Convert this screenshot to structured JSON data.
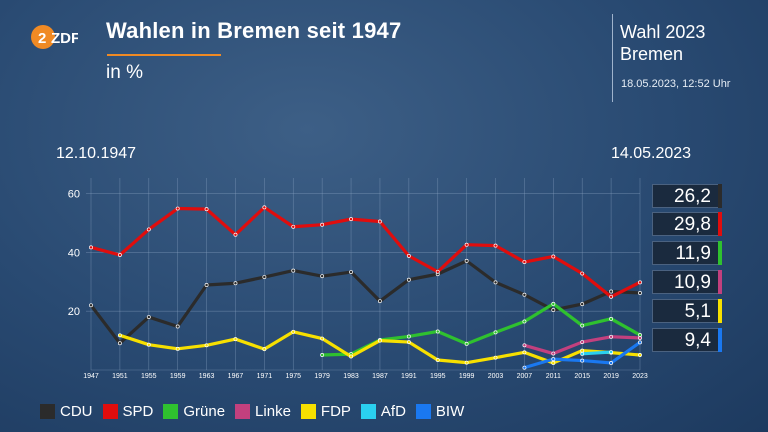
{
  "header": {
    "logo_text": "ZDF",
    "title": "Wahlen in Bremen seit 1947",
    "subtitle": "in %",
    "side_title_line1": "Wahl 2023",
    "side_title_line2": "Bremen",
    "side_date": "18.05.2023, 12:52 Uhr",
    "date_start": "12.10.1947",
    "date_end": "14.05.2023"
  },
  "colors": {
    "CDU": "#2b2b2b",
    "SPD": "#e00d0d",
    "Grüne": "#2fc12f",
    "Linke": "#c2407e",
    "FDP": "#f7e000",
    "AfD": "#2ad0f0",
    "BIW": "#1a78f0"
  },
  "chart_data": {
    "type": "line",
    "x": [
      "1947",
      "1951",
      "1955",
      "1959",
      "1963",
      "1967",
      "1971",
      "1975",
      "1979",
      "1983",
      "1987",
      "1991",
      "1995",
      "1999",
      "2003",
      "2007",
      "2011",
      "2015",
      "2019",
      "2023"
    ],
    "ylim": [
      0,
      68
    ],
    "yticks": [
      "20",
      "40",
      "60"
    ],
    "grid": true,
    "series": [
      {
        "name": "CDU",
        "values": [
          22.0,
          9.1,
          18.0,
          14.8,
          28.9,
          29.5,
          31.6,
          33.8,
          31.9,
          33.3,
          23.4,
          30.7,
          32.6,
          37.1,
          29.8,
          25.6,
          20.4,
          22.4,
          26.7,
          26.2
        ]
      },
      {
        "name": "SPD",
        "values": [
          41.7,
          39.1,
          47.8,
          54.9,
          54.7,
          46.0,
          55.3,
          48.7,
          49.4,
          51.3,
          50.5,
          38.8,
          33.4,
          42.6,
          42.3,
          36.7,
          38.6,
          32.8,
          24.9,
          29.8
        ]
      },
      {
        "name": "Grüne",
        "values": [
          null,
          null,
          null,
          null,
          null,
          null,
          null,
          null,
          5.1,
          5.4,
          10.2,
          11.4,
          13.1,
          8.9,
          12.8,
          16.5,
          22.5,
          15.1,
          17.4,
          11.9
        ]
      },
      {
        "name": "Linke",
        "values": [
          null,
          null,
          null,
          null,
          null,
          null,
          null,
          null,
          null,
          null,
          null,
          null,
          null,
          null,
          null,
          8.4,
          5.6,
          9.5,
          11.3,
          10.9
        ]
      },
      {
        "name": "FDP",
        "values": [
          null,
          11.8,
          8.6,
          7.2,
          8.4,
          10.5,
          7.1,
          13.0,
          10.7,
          4.6,
          10.0,
          9.5,
          3.4,
          2.5,
          4.2,
          6.0,
          2.4,
          6.6,
          5.9,
          5.1
        ]
      },
      {
        "name": "AfD",
        "values": [
          null,
          null,
          null,
          null,
          null,
          null,
          null,
          null,
          null,
          null,
          null,
          null,
          null,
          null,
          null,
          null,
          null,
          5.5,
          6.1,
          null
        ]
      },
      {
        "name": "BIW",
        "values": [
          null,
          null,
          null,
          null,
          null,
          null,
          null,
          null,
          null,
          null,
          null,
          null,
          null,
          null,
          null,
          0.8,
          3.7,
          3.2,
          2.4,
          9.4
        ]
      }
    ],
    "result_labels": [
      {
        "party": "CDU",
        "value": "26,2"
      },
      {
        "party": "SPD",
        "value": "29,8"
      },
      {
        "party": "Grüne",
        "value": "11,9"
      },
      {
        "party": "Linke",
        "value": "10,9"
      },
      {
        "party": "FDP",
        "value": "5,1"
      },
      {
        "party": "BIW",
        "value": "9,4"
      }
    ],
    "legend": [
      "CDU",
      "SPD",
      "Grüne",
      "Linke",
      "FDP",
      "AfD",
      "BIW"
    ],
    "legend_position": "bottom"
  }
}
